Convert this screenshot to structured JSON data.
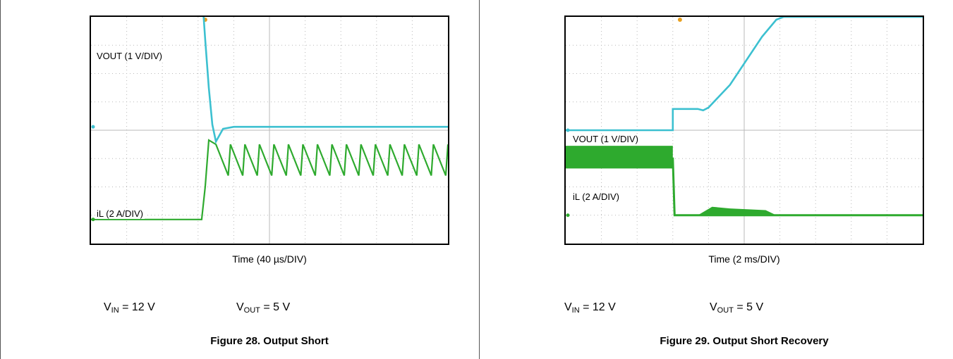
{
  "colors": {
    "vout": "#3cc0d0",
    "il": "#2eaa2e",
    "grid": "#b8b8b8",
    "marker": "#e8a020"
  },
  "figures": [
    {
      "trace_labels": {
        "vout": "VOUT (1 V/DIV)",
        "il": "iL (2 A/DIV)"
      },
      "time_label": "Time (40 µs/DIV)",
      "vin": {
        "prefix": "V",
        "sub": "IN",
        "rest": " = 12 V"
      },
      "vout": {
        "prefix": "V",
        "sub": "OUT",
        "rest": " = 5 V"
      },
      "caption": "Figure 28. Output Short"
    },
    {
      "trace_labels": {
        "vout": "VOUT (1 V/DIV)",
        "il": "iL (2 A/DIV)"
      },
      "time_label": "Time (2 ms/DIV)",
      "vin": {
        "prefix": "V",
        "sub": "IN",
        "rest": " = 12 V"
      },
      "vout": {
        "prefix": "V",
        "sub": "OUT",
        "rest": " = 5 V"
      },
      "caption": "Figure 29. Output Short Recovery"
    }
  ],
  "chart_data": [
    {
      "type": "line",
      "title": "Figure 28. Output Short",
      "xlabel": "Time (40 µs/DIV)",
      "x_divisions": 10,
      "y_divisions": 8,
      "grid": true,
      "series": [
        {
          "name": "VOUT (1 V/DIV)",
          "x": [
            0,
            3.1,
            3.2,
            3.3,
            3.4,
            3.5,
            3.7,
            4.0,
            10
          ],
          "y": [
            5.0,
            5.0,
            3.2,
            1.5,
            0.2,
            -0.4,
            0.05,
            0.12,
            0.12
          ]
        },
        {
          "name": "iL (2 A/DIV)",
          "x": [
            0,
            3.1,
            3.2,
            3.3,
            10
          ],
          "y": [
            -3.15,
            -3.15,
            -2.0,
            -0.35,
            -0.35
          ]
        }
      ],
      "il_sawtooth": {
        "start": 3.5,
        "end": 10,
        "cycles": 16,
        "peak": -0.5,
        "valley": -1.6
      }
    },
    {
      "type": "line",
      "title": "Figure 29. Output Short Recovery",
      "xlabel": "Time (2 ms/DIV)",
      "x_divisions": 10,
      "y_divisions": 8,
      "grid": true,
      "series": [
        {
          "name": "VOUT (1 V/DIV)",
          "x": [
            0,
            3.0,
            3.0,
            3.7,
            3.85,
            4.0,
            4.6,
            5.5,
            5.9,
            6.1,
            10
          ],
          "y": [
            0.0,
            0.0,
            0.75,
            0.75,
            0.7,
            0.8,
            1.6,
            3.3,
            3.9,
            4.0,
            4.0
          ]
        },
        {
          "name": "iL (2 A/DIV)",
          "x": [
            0,
            3.0,
            3.05,
            10
          ],
          "y": [
            -1.0,
            -1.0,
            -3.0,
            -3.0
          ]
        }
      ],
      "il_band": {
        "x_end": 3.0,
        "top": -0.55,
        "bottom": -1.35
      },
      "il_bump": {
        "x_start": 3.7,
        "x_end": 5.9,
        "height": 0.3
      }
    }
  ]
}
